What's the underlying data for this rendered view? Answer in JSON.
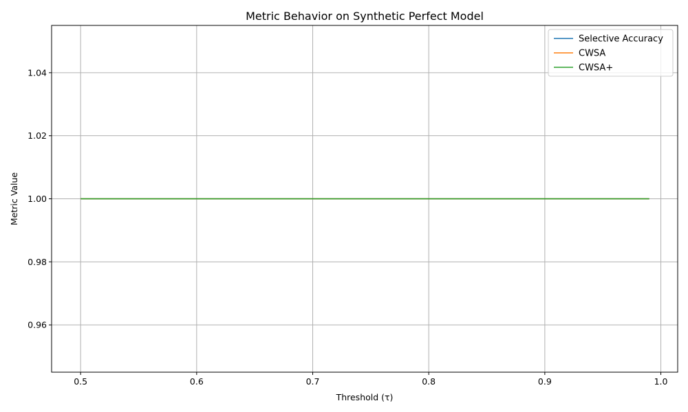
{
  "chart_data": {
    "type": "line",
    "title": "Metric Behavior on Synthetic Perfect Model",
    "xlabel": "Threshold (τ)",
    "ylabel": "Metric Value",
    "xlim": [
      0.475,
      1.0145
    ],
    "ylim": [
      0.945,
      1.055
    ],
    "xticks": [
      0.5,
      0.6,
      0.7,
      0.8,
      0.9,
      1.0
    ],
    "xtick_labels": [
      "0.5",
      "0.6",
      "0.7",
      "0.8",
      "0.9",
      "1.0"
    ],
    "yticks": [
      0.96,
      0.98,
      1.0,
      1.02,
      1.04
    ],
    "ytick_labels": [
      "0.96",
      "0.98",
      "1.00",
      "1.02",
      "1.04"
    ],
    "grid": true,
    "legend_position": "top-right",
    "x": [
      0.5,
      0.99
    ],
    "series": [
      {
        "name": "Selective Accuracy",
        "color": "#1f77b4",
        "values": [
          1.0,
          1.0
        ]
      },
      {
        "name": "CWSA",
        "color": "#ff7f0e",
        "values": [
          1.0,
          1.0
        ]
      },
      {
        "name": "CWSA+",
        "color": "#2ca02c",
        "values": [
          1.0,
          1.0
        ]
      }
    ]
  }
}
